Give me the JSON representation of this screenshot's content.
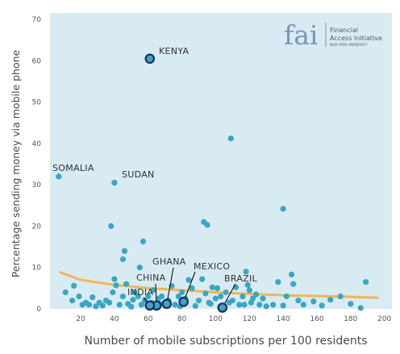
{
  "logo": {
    "mark": "fai",
    "line1": "Financial",
    "line2": "Access Initiative",
    "line3": "NEW YORK UNIVERSITY"
  },
  "colors": {
    "plot_bg": "#d8ebf2",
    "point": "#3aa6c4",
    "highlight_point": "#3aa6c4",
    "highlight_ring": "#1d2f5c",
    "trend": "#f0b555",
    "logo": "#7f93b3"
  },
  "chart_data": {
    "type": "scatter",
    "xlabel": "Number of mobile subscriptions per 100 residents",
    "ylabel": "Percentage sending money via mobile phone",
    "xlim": [
      0,
      200
    ],
    "ylim": [
      0,
      70
    ],
    "xticks": [
      20,
      40,
      60,
      80,
      100,
      120,
      140,
      160,
      180,
      200
    ],
    "yticks": [
      0,
      10,
      20,
      30,
      40,
      50,
      60,
      70
    ],
    "grid": false,
    "points": [
      [
        7,
        32
      ],
      [
        40,
        30.5
      ],
      [
        38,
        20
      ],
      [
        46,
        14
      ],
      [
        45,
        12
      ],
      [
        55,
        10
      ],
      [
        57,
        16.3
      ],
      [
        93,
        21
      ],
      [
        95,
        20.3
      ],
      [
        109,
        41.2
      ],
      [
        140,
        24.2
      ],
      [
        11,
        4
      ],
      [
        16,
        5.6
      ],
      [
        19,
        3
      ],
      [
        21,
        1
      ],
      [
        23,
        1.5
      ],
      [
        25,
        1
      ],
      [
        31,
        1.5
      ],
      [
        33,
        0.8
      ],
      [
        35,
        2
      ],
      [
        37,
        1.5
      ],
      [
        39,
        4
      ],
      [
        40,
        7.2
      ],
      [
        41,
        5.7
      ],
      [
        43,
        1
      ],
      [
        45,
        3
      ],
      [
        48,
        1.2
      ],
      [
        50,
        0.5
      ],
      [
        52,
        4
      ],
      [
        54,
        3
      ],
      [
        56,
        1
      ],
      [
        58,
        2
      ],
      [
        60,
        3
      ],
      [
        62,
        1.5
      ],
      [
        64,
        0.8
      ],
      [
        66,
        2.5
      ],
      [
        68,
        3
      ],
      [
        70,
        0.8
      ],
      [
        72,
        2
      ],
      [
        74,
        5.5
      ],
      [
        76,
        1
      ],
      [
        78,
        3
      ],
      [
        80,
        4
      ],
      [
        82,
        2.5
      ],
      [
        84,
        7
      ],
      [
        86,
        5
      ],
      [
        88,
        0.7
      ],
      [
        90,
        2
      ],
      [
        92,
        7.2
      ],
      [
        94,
        3.7
      ],
      [
        96,
        1.5
      ],
      [
        98,
        5.2
      ],
      [
        100,
        2.5
      ],
      [
        101,
        5
      ],
      [
        103,
        3
      ],
      [
        106,
        4
      ],
      [
        108,
        1.5
      ],
      [
        110,
        2
      ],
      [
        112,
        5.2
      ],
      [
        114,
        1
      ],
      [
        116,
        3
      ],
      [
        118,
        9
      ],
      [
        119,
        5.8
      ],
      [
        120,
        4.5
      ],
      [
        121,
        1.5
      ],
      [
        122,
        2.5
      ],
      [
        124,
        3.5
      ],
      [
        126,
        1
      ],
      [
        128,
        2.5
      ],
      [
        130,
        0.6
      ],
      [
        134,
        1
      ],
      [
        137,
        6.5
      ],
      [
        140,
        0.8
      ],
      [
        142,
        3
      ],
      [
        145,
        8.3
      ],
      [
        146,
        6
      ],
      [
        149,
        2
      ],
      [
        152,
        1
      ],
      [
        158,
        1.8
      ],
      [
        163,
        0.8
      ],
      [
        168,
        2.2
      ],
      [
        174,
        3
      ],
      [
        180,
        1.2
      ],
      [
        186,
        0.2
      ],
      [
        189,
        6.5
      ],
      [
        15,
        2
      ],
      [
        27,
        2.8
      ],
      [
        29,
        0.6
      ],
      [
        47,
        6
      ],
      [
        51,
        2.2
      ],
      [
        63,
        4.5
      ],
      [
        67,
        1.2
      ],
      [
        79,
        0.6
      ],
      [
        97,
        1.2
      ],
      [
        104,
        0.5
      ],
      [
        117,
        1
      ]
    ],
    "highlighted": [
      {
        "label": "KENYA",
        "x": 61,
        "y": 60.5
      },
      {
        "label": "SOMALIA",
        "x": 7,
        "y": 32
      },
      {
        "label": "SUDAN",
        "x": 40,
        "y": 30.5
      },
      {
        "label": "GHANA",
        "x": 71,
        "y": 1.2
      },
      {
        "label": "MEXICO",
        "x": 81,
        "y": 1.7
      },
      {
        "label": "CHINA",
        "x": 65,
        "y": 0.8
      },
      {
        "label": "INDIA",
        "x": 61,
        "y": 0.8
      },
      {
        "label": "BRAZIL",
        "x": 104,
        "y": 0.3
      }
    ],
    "trend": [
      [
        8,
        8.8
      ],
      [
        20,
        7
      ],
      [
        40,
        5.8
      ],
      [
        60,
        5
      ],
      [
        80,
        4.5
      ],
      [
        100,
        4
      ],
      [
        120,
        3.6
      ],
      [
        140,
        3.3
      ],
      [
        160,
        3.1
      ],
      [
        180,
        2.9
      ],
      [
        196,
        2.7
      ]
    ]
  }
}
